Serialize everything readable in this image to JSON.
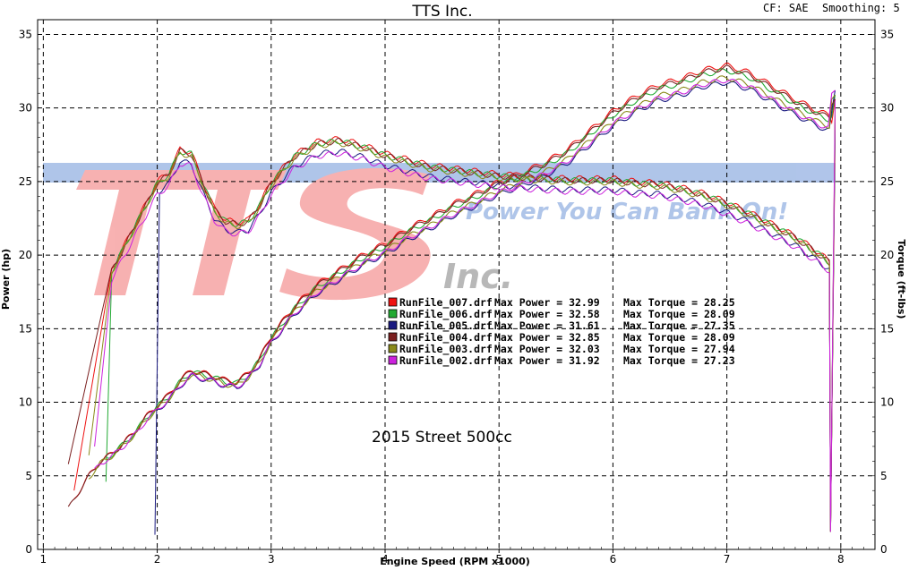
{
  "header": {
    "company": "TTS Inc.",
    "cf_label": "CF: SAE",
    "smoothing_label": "Smoothing: 5"
  },
  "watermark": {
    "letters": "TTS",
    "inc": "Inc.",
    "slogan": "Power You Can Bank On!"
  },
  "colors": {
    "RunFile_007": "#ee1111",
    "RunFile_006": "#22aa33",
    "RunFile_005": "#1a1a80",
    "RunFile_004": "#7a1f1f",
    "RunFile_003": "#8a8a1a",
    "RunFile_002": "#cc22dd"
  },
  "chart_data": {
    "type": "line",
    "annotation": "2015 Street 500cc",
    "xlabel": "Engine Speed (RPM x1000)",
    "ylabel_left": "Power (hp)",
    "ylabel_right": "Torque (ft-lbs)",
    "xlim": [
      0.95,
      8.3
    ],
    "ylim": [
      0,
      36
    ],
    "xticks": [
      "1",
      "2",
      "3",
      "4",
      "5",
      "6",
      "7",
      "8"
    ],
    "yticks_left": [
      "0",
      "5",
      "10",
      "15",
      "20",
      "25",
      "30",
      "35"
    ],
    "yticks_right": [
      "0",
      "5",
      "10",
      "15",
      "20",
      "25",
      "30",
      "35"
    ],
    "grid": true,
    "legend": [
      {
        "file": "RunFile_007.drf",
        "max_power_label": "Max Power = 32.99",
        "max_torque_label": "Max Torque = 28.25",
        "color": "#ee1111"
      },
      {
        "file": "RunFile_006.drf",
        "max_power_label": "Max Power = 32.58",
        "max_torque_label": "Max Torque = 28.09",
        "color": "#22aa33"
      },
      {
        "file": "RunFile_005.drf",
        "max_power_label": "Max Power = 31.61",
        "max_torque_label": "Max Torque = 27.35",
        "color": "#1a1a80"
      },
      {
        "file": "RunFile_004.drf",
        "max_power_label": "Max Power = 32.85",
        "max_torque_label": "Max Torque = 28.09",
        "color": "#7a1f1f"
      },
      {
        "file": "RunFile_003.drf",
        "max_power_label": "Max Power = 32.03",
        "max_torque_label": "Max Torque = 27.94",
        "color": "#8a8a1a"
      },
      {
        "file": "RunFile_002.drf",
        "max_power_label": "Max Power = 31.92",
        "max_torque_label": "Max Torque = 27.23",
        "color": "#cc22dd"
      }
    ],
    "power_base": {
      "x": [
        1.2,
        1.3,
        1.4,
        1.5,
        1.6,
        1.7,
        1.8,
        1.9,
        2.0,
        2.1,
        2.2,
        2.3,
        2.4,
        2.5,
        2.6,
        2.7,
        2.8,
        2.9,
        3.0,
        3.2,
        3.4,
        3.6,
        3.8,
        4.0,
        4.2,
        4.4,
        4.6,
        4.8,
        5.0,
        5.2,
        5.4,
        5.6,
        5.8,
        6.0,
        6.2,
        6.4,
        6.6,
        6.8,
        7.0,
        7.2,
        7.4,
        7.6,
        7.8,
        7.9
      ],
      "y": [
        2.5,
        3.8,
        5.0,
        6.0,
        6.5,
        7.2,
        8.0,
        9.0,
        9.8,
        10.5,
        11.5,
        12.2,
        12.0,
        11.8,
        11.5,
        11.4,
        12.0,
        13.0,
        14.5,
        16.5,
        18.0,
        19.0,
        20.0,
        20.8,
        21.8,
        22.6,
        23.5,
        24.2,
        25.0,
        25.6,
        26.3,
        27.2,
        28.5,
        29.8,
        30.8,
        31.6,
        32.0,
        32.6,
        32.9,
        32.4,
        31.5,
        30.6,
        29.8,
        29.5
      ]
    },
    "torque_base": {
      "x": [
        2.0,
        2.1,
        2.2,
        2.3,
        2.4,
        2.5,
        2.6,
        2.7,
        2.8,
        2.9,
        3.0,
        3.2,
        3.4,
        3.6,
        3.8,
        4.0,
        4.2,
        4.4,
        4.6,
        4.8,
        5.0,
        5.2,
        5.4,
        5.6,
        5.8,
        6.0,
        6.2,
        6.4,
        6.6,
        6.8,
        7.0,
        7.2,
        7.4,
        7.6,
        7.8,
        7.9
      ],
      "y": [
        25.0,
        25.6,
        27.2,
        27.0,
        25.0,
        23.2,
        22.4,
        22.2,
        22.4,
        23.5,
        25.0,
        26.8,
        27.7,
        27.9,
        27.5,
        26.9,
        26.5,
        26.1,
        25.9,
        25.7,
        25.5,
        25.4,
        25.3,
        25.2,
        25.2,
        25.2,
        25.0,
        24.9,
        24.6,
        24.2,
        23.6,
        22.9,
        22.1,
        21.3,
        20.2,
        19.6
      ]
    },
    "run_offsets": {
      "power_scale": [
        1.0,
        0.99,
        0.965,
        0.995,
        0.975,
        0.97
      ],
      "torque_scale": [
        1.0,
        0.995,
        0.97,
        0.995,
        0.99,
        0.965
      ],
      "start_rpm": [
        1.27,
        1.55,
        1.98,
        1.22,
        1.4,
        1.45
      ]
    }
  }
}
